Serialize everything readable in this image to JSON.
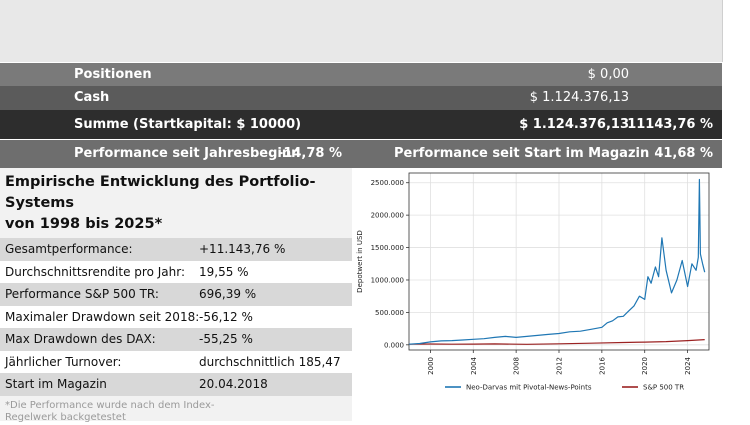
{
  "summary": {
    "positions": {
      "label": "Positionen",
      "value": "$ 0,00"
    },
    "cash": {
      "label": "Cash",
      "value": "$ 1.124.376,13"
    },
    "sum": {
      "label": "Summe (Startkapital: $ 10000)",
      "value": "$ 1.124.376,13",
      "percent": "11143,76 %"
    },
    "performance": {
      "ytd_label": "Performance seit Jahresbeginn",
      "ytd_value": "-14,78 %",
      "since_label": "Performance seit Start im Magazin",
      "since_value": "41,68 %"
    }
  },
  "panel": {
    "title_line1": "Empirische Entwicklung des Portfolio-Systems",
    "title_line2": "von 1998 bis 2025*",
    "stats": [
      {
        "label": "Gesamtperformance:",
        "value": "+11.143,76 %"
      },
      {
        "label": "Durchschnittsrendite pro Jahr:",
        "value": "19,55 %"
      },
      {
        "label": "Performance S&P 500 TR:",
        "value": "696,39 %"
      },
      {
        "label": "Maximaler Drawdown seit 2018:",
        "value": "-56,12 %"
      },
      {
        "label": "Max Drawdown des DAX:",
        "value": "-55,25 %"
      },
      {
        "label": "Jährlicher Turnover:",
        "value": "durchschnittlich 185,47 %"
      },
      {
        "label": "Start im Magazin",
        "value": "20.04.2018"
      }
    ],
    "footnote_line1": "*Die Performance wurde nach dem Index-",
    "footnote_line2": "Regelwerk backgetestet"
  },
  "chart_data": {
    "type": "line",
    "ylabel": "Depotwert in USD",
    "xlim": [
      1998,
      2026
    ],
    "ylim": [
      -80000,
      2650000
    ],
    "x_ticks": [
      "2000",
      "2004",
      "2008",
      "2012",
      "2016",
      "2020",
      "2024"
    ],
    "y_ticks": [
      "0.000",
      "500.000",
      "1000.000",
      "1500.000",
      "2000.000",
      "2500.000"
    ],
    "grid": true,
    "legend": "bottom",
    "series": [
      {
        "name": "Neo-Darvas mit Pivotal-News-Points",
        "color": "#1f77b4",
        "x": [
          1998.0,
          1999.0,
          2000.0,
          2001.0,
          2002.0,
          2003.0,
          2004.0,
          2005.0,
          2006.0,
          2007.0,
          2008.0,
          2009.0,
          2010.0,
          2011.0,
          2012.0,
          2013.0,
          2014.0,
          2015.0,
          2016.0,
          2016.5,
          2017.0,
          2017.5,
          2018.0,
          2018.5,
          2019.0,
          2019.5,
          2020.0,
          2020.3,
          2020.6,
          2021.0,
          2021.3,
          2021.6,
          2022.0,
          2022.5,
          2023.0,
          2023.5,
          2024.0,
          2024.4,
          2024.8,
          2025.0,
          2025.1,
          2025.2,
          2025.4,
          2025.6
        ],
        "y": [
          10000,
          20000,
          45000,
          60000,
          65000,
          75000,
          85000,
          95000,
          115000,
          130000,
          115000,
          130000,
          145000,
          160000,
          175000,
          200000,
          210000,
          240000,
          270000,
          340000,
          370000,
          430000,
          440000,
          520000,
          600000,
          750000,
          700000,
          1050000,
          950000,
          1200000,
          1050000,
          1650000,
          1150000,
          800000,
          1000000,
          1300000,
          900000,
          1250000,
          1150000,
          1350000,
          2550000,
          1400000,
          1250000,
          1120000
        ]
      },
      {
        "name": "S&P 500 TR",
        "color": "#9b2222",
        "x": [
          1998.0,
          2000.0,
          2002.0,
          2004.0,
          2006.0,
          2008.0,
          2009.0,
          2012.0,
          2015.0,
          2018.0,
          2020.0,
          2022.0,
          2024.0,
          2025.6
        ],
        "y": [
          10000,
          12000,
          9000,
          11000,
          14000,
          9000,
          8500,
          15000,
          25000,
          35000,
          42000,
          50000,
          65000,
          80000
        ]
      }
    ]
  }
}
